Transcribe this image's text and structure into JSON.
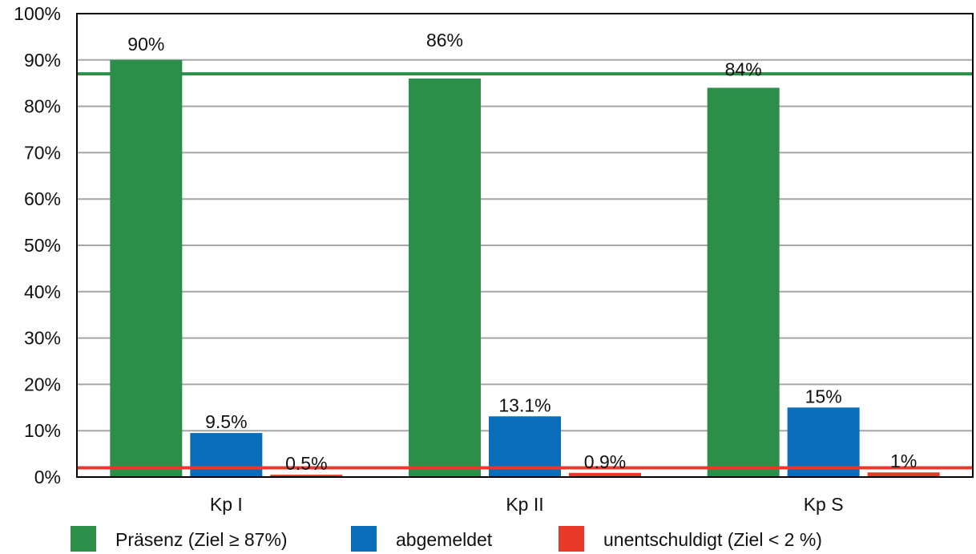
{
  "chart_data": {
    "type": "bar",
    "categories": [
      "Kp I",
      "Kp II",
      "Kp S"
    ],
    "series": [
      {
        "name": "Präsenz (Ziel ≥ 87%)",
        "values": [
          90,
          86,
          84
        ],
        "labels": [
          "90%",
          "86%",
          "84%"
        ],
        "color": "#2b8f4a"
      },
      {
        "name": "abgemeldet",
        "values": [
          9.5,
          13.1,
          15
        ],
        "labels": [
          "9.5%",
          "13.1%",
          "15%"
        ],
        "color": "#0a6dba"
      },
      {
        "name": "unentschuldigt (Ziel < 2 %)",
        "values": [
          0.5,
          0.9,
          1
        ],
        "labels": [
          "0.5%",
          "0.9%",
          "1%"
        ],
        "color": "#e8392b"
      }
    ],
    "yticks": [
      "0%",
      "10%",
      "20%",
      "30%",
      "40%",
      "50%",
      "60%",
      "70%",
      "80%",
      "90%",
      "100%"
    ],
    "ylim": [
      0,
      100
    ],
    "target_lines": [
      {
        "value": 87,
        "color": "#2b8f4a"
      },
      {
        "value": 2,
        "color": "#e8392b"
      }
    ],
    "grid": true,
    "legend_position": "bottom",
    "title": "",
    "xlabel": "",
    "ylabel": ""
  }
}
